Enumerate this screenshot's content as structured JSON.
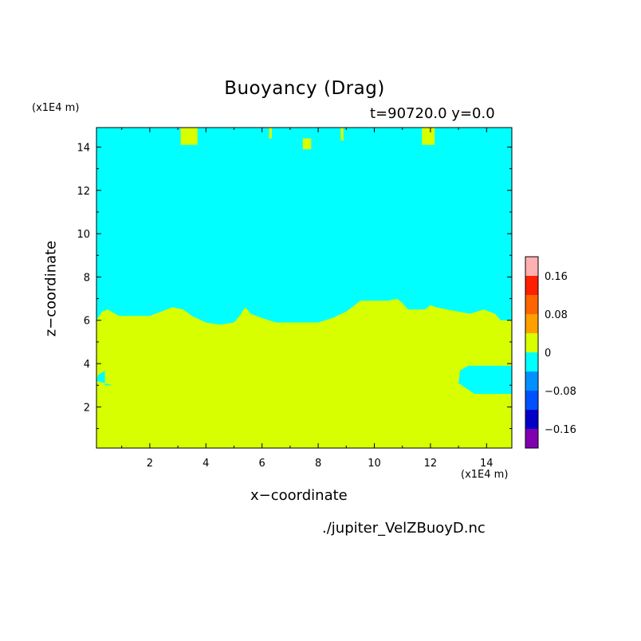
{
  "chart_data": {
    "type": "heatmap",
    "title": "Buoyancy (Drag)",
    "subtitle": "t=90720.0 y=0.0",
    "xlabel": "x−coordinate",
    "ylabel": "z−coordinate",
    "x_unit_label": "(x1E4 m)",
    "y_unit_label": "(x1E4 m)",
    "filename": "./jupiter_VelZBuoyD.nc",
    "xlim": [
      0.1,
      14.9
    ],
    "ylim": [
      0.1,
      14.9
    ],
    "x_ticks": [
      "2",
      "4",
      "6",
      "8",
      "10",
      "12",
      "14"
    ],
    "y_ticks": [
      "2",
      "4",
      "6",
      "8",
      "10",
      "12",
      "14"
    ],
    "colorbar": {
      "levels": [
        0.2,
        0.16,
        0.12,
        0.08,
        0.04,
        0,
        -0.04,
        -0.08,
        -0.12,
        -0.16,
        -0.2
      ],
      "labels": [
        "0.16",
        "0.08",
        "0",
        "−0.08",
        "−0.16"
      ],
      "label_values": [
        0.16,
        0.08,
        0,
        -0.08,
        -0.16
      ],
      "colors": [
        "#ffb0b0",
        "#ff2000",
        "#ff6400",
        "#ffa000",
        "#d8ff00",
        "#00ffff",
        "#0090ff",
        "#0050ff",
        "#0000c8",
        "#8000b0"
      ]
    },
    "fill_colors": {
      "negative_small": "#00ffff",
      "positive_small": "#d8ff00"
    },
    "interface_height": [
      [
        0.1,
        6.0
      ],
      [
        0.3,
        6.4
      ],
      [
        0.5,
        6.5
      ],
      [
        0.9,
        6.2
      ],
      [
        1.5,
        6.2
      ],
      [
        2.0,
        6.2
      ],
      [
        2.4,
        6.4
      ],
      [
        2.8,
        6.6
      ],
      [
        3.2,
        6.5
      ],
      [
        3.5,
        6.2
      ],
      [
        4.0,
        5.9
      ],
      [
        4.5,
        5.8
      ],
      [
        5.0,
        5.9
      ],
      [
        5.2,
        6.2
      ],
      [
        5.4,
        6.6
      ],
      [
        5.6,
        6.3
      ],
      [
        6.0,
        6.1
      ],
      [
        6.5,
        5.9
      ],
      [
        7.5,
        5.9
      ],
      [
        8.0,
        5.9
      ],
      [
        8.5,
        6.1
      ],
      [
        9.0,
        6.4
      ],
      [
        9.5,
        6.9
      ],
      [
        10.0,
        6.9
      ],
      [
        10.5,
        6.9
      ],
      [
        10.8,
        7.0
      ],
      [
        11.0,
        6.8
      ],
      [
        11.2,
        6.5
      ],
      [
        11.8,
        6.5
      ],
      [
        12.0,
        6.7
      ],
      [
        12.2,
        6.6
      ],
      [
        12.6,
        6.5
      ],
      [
        13.0,
        6.4
      ],
      [
        13.4,
        6.3
      ],
      [
        13.9,
        6.5
      ],
      [
        14.3,
        6.3
      ],
      [
        14.5,
        6.0
      ],
      [
        14.9,
        6.0
      ]
    ],
    "positive_patches_top": [
      {
        "x": [
          3.1,
          3.7
        ],
        "z": [
          14.1,
          14.9
        ]
      },
      {
        "x": [
          6.25,
          6.35
        ],
        "z": [
          14.4,
          14.9
        ]
      },
      {
        "x": [
          7.45,
          7.75
        ],
        "z": [
          13.9,
          14.4
        ]
      },
      {
        "x": [
          8.8,
          8.9
        ],
        "z": [
          14.3,
          14.9
        ]
      },
      {
        "x": [
          11.7,
          12.15
        ],
        "z": [
          14.1,
          14.9
        ]
      }
    ],
    "negative_patches_bottom": [
      {
        "x": [
          0.1,
          0.4
        ],
        "z": [
          3.0,
          3.7
        ]
      },
      {
        "x": [
          13.0,
          14.9
        ],
        "z": [
          2.6,
          3.9
        ]
      }
    ]
  }
}
